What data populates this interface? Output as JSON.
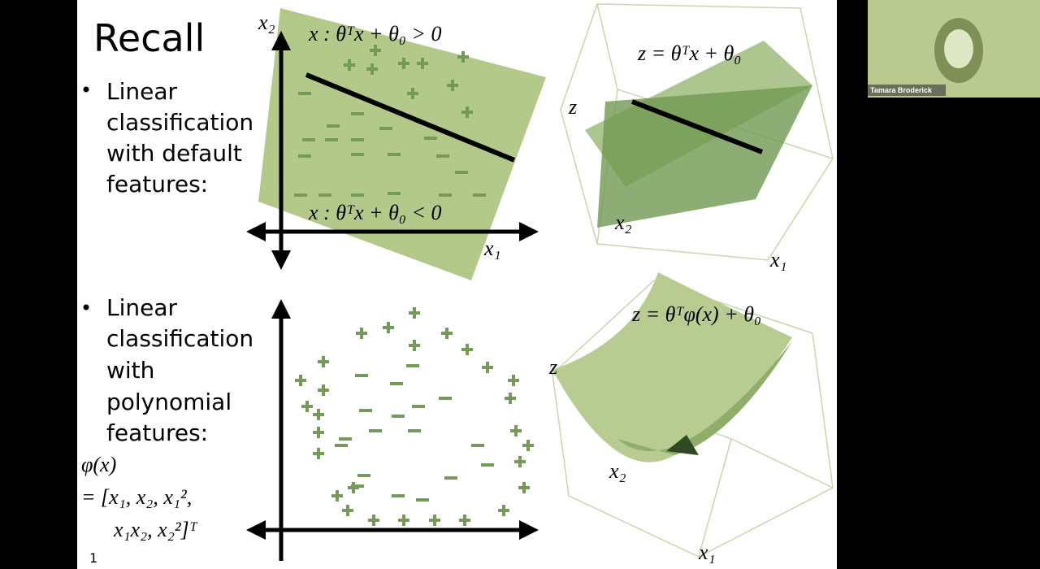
{
  "slide": {
    "title": "Recall",
    "bullet_1": [
      "Linear",
      "classification",
      "with default",
      "features:"
    ],
    "bullet_2": [
      "Linear",
      "classification",
      "with",
      "polynomial",
      "features:"
    ],
    "feature_map": [
      "φ(x)",
      "= [x₁, x₂, x₁²,",
      "x₁x₂, x₂²]ᵀ"
    ],
    "plot_1": {
      "y_axis": "x₂",
      "x_axis": "x₁",
      "positive_region": "x : θᵀx + θ₀ > 0",
      "negative_region": "x : θᵀx + θ₀ < 0"
    },
    "plot_2": {
      "equation": "z = θᵀx + θ₀",
      "z_axis": "z",
      "y_axis": "x₂",
      "x_axis": "x₁"
    },
    "plot_3": {
      "equation": "z = θᵀφ(x) + θ₀",
      "z_axis": "z",
      "y_axis": "x₂",
      "x_axis": "x₁"
    },
    "page_number": "1"
  },
  "participant": {
    "name": "Tamara Broderick"
  }
}
